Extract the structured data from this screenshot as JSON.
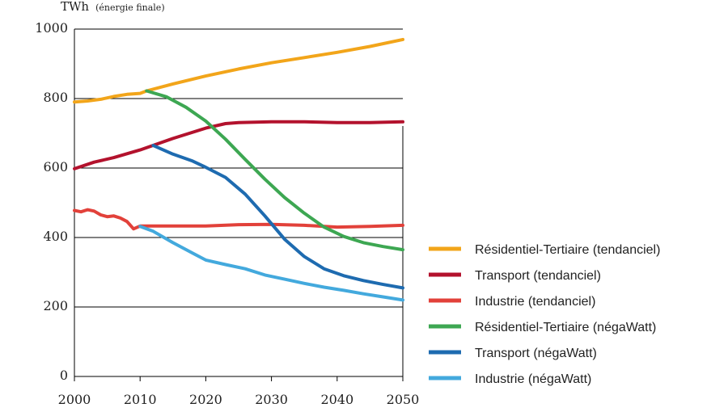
{
  "chart_data": {
    "type": "line",
    "ylabel_main": "TWh",
    "ylabel_sub": "(énergie finale)",
    "xlim": [
      2000,
      2050
    ],
    "ylim": [
      0,
      1000
    ],
    "x_ticks": [
      "2000",
      "2010",
      "2020",
      "2030",
      "2040",
      "2050"
    ],
    "y_ticks": [
      "0",
      "200",
      "400",
      "600",
      "800",
      "1000"
    ],
    "grid": "horizontal",
    "legend_position": "right",
    "series": [
      {
        "name": "Résidentiel-Tertiaire (tendanciel)",
        "color": "#f2a51a",
        "points": [
          [
            2000,
            790
          ],
          [
            2002,
            793
          ],
          [
            2004,
            798
          ],
          [
            2006,
            806
          ],
          [
            2008,
            812
          ],
          [
            2010,
            815
          ],
          [
            2011,
            822
          ],
          [
            2015,
            842
          ],
          [
            2020,
            865
          ],
          [
            2025,
            885
          ],
          [
            2030,
            903
          ],
          [
            2035,
            918
          ],
          [
            2040,
            933
          ],
          [
            2045,
            950
          ],
          [
            2050,
            970
          ]
        ]
      },
      {
        "name": "Transport (tendanciel)",
        "color": "#b3122d",
        "points": [
          [
            2000,
            598
          ],
          [
            2003,
            617
          ],
          [
            2006,
            630
          ],
          [
            2010,
            652
          ],
          [
            2015,
            685
          ],
          [
            2020,
            715
          ],
          [
            2023,
            728
          ],
          [
            2025,
            731
          ],
          [
            2030,
            733
          ],
          [
            2035,
            733
          ],
          [
            2040,
            731
          ],
          [
            2045,
            731
          ],
          [
            2050,
            733
          ]
        ]
      },
      {
        "name": "Industrie (tendanciel)",
        "color": "#e2413a",
        "points": [
          [
            2000,
            478
          ],
          [
            2001,
            474
          ],
          [
            2002,
            480
          ],
          [
            2003,
            476
          ],
          [
            2004,
            465
          ],
          [
            2005,
            460
          ],
          [
            2006,
            462
          ],
          [
            2007,
            456
          ],
          [
            2008,
            446
          ],
          [
            2009,
            425
          ],
          [
            2010,
            433
          ],
          [
            2015,
            433
          ],
          [
            2020,
            433
          ],
          [
            2025,
            437
          ],
          [
            2030,
            438
          ],
          [
            2035,
            435
          ],
          [
            2040,
            430
          ],
          [
            2045,
            432
          ],
          [
            2050,
            435
          ]
        ]
      },
      {
        "name": "Résidentiel-Tertiaire (négaWatt)",
        "color": "#3da752",
        "points": [
          [
            2011,
            822
          ],
          [
            2014,
            805
          ],
          [
            2017,
            775
          ],
          [
            2020,
            735
          ],
          [
            2023,
            683
          ],
          [
            2026,
            625
          ],
          [
            2029,
            568
          ],
          [
            2032,
            515
          ],
          [
            2035,
            470
          ],
          [
            2038,
            430
          ],
          [
            2041,
            403
          ],
          [
            2044,
            385
          ],
          [
            2047,
            374
          ],
          [
            2050,
            365
          ]
        ]
      },
      {
        "name": "Transport (négaWatt)",
        "color": "#1e6bb0",
        "points": [
          [
            2012,
            665
          ],
          [
            2015,
            640
          ],
          [
            2018,
            620
          ],
          [
            2020,
            602
          ],
          [
            2023,
            573
          ],
          [
            2026,
            525
          ],
          [
            2029,
            462
          ],
          [
            2032,
            395
          ],
          [
            2035,
            345
          ],
          [
            2038,
            310
          ],
          [
            2041,
            290
          ],
          [
            2044,
            276
          ],
          [
            2047,
            265
          ],
          [
            2050,
            255
          ]
        ]
      },
      {
        "name": "Industrie (négaWatt)",
        "color": "#43a9dd",
        "points": [
          [
            2010,
            432
          ],
          [
            2012,
            418
          ],
          [
            2015,
            385
          ],
          [
            2018,
            355
          ],
          [
            2020,
            335
          ],
          [
            2023,
            322
          ],
          [
            2026,
            310
          ],
          [
            2029,
            292
          ],
          [
            2032,
            280
          ],
          [
            2035,
            268
          ],
          [
            2038,
            257
          ],
          [
            2041,
            248
          ],
          [
            2044,
            238
          ],
          [
            2047,
            229
          ],
          [
            2050,
            220
          ]
        ]
      }
    ]
  }
}
